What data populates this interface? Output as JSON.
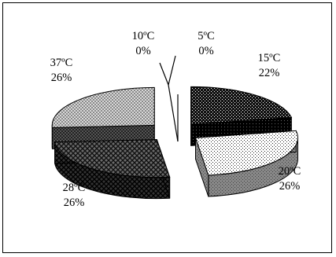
{
  "chart_data": {
    "type": "pie",
    "style": "3d-exploded",
    "title": "",
    "legend": "none",
    "slices": [
      {
        "category": "5ºC",
        "value": 0,
        "label": "0%",
        "pattern": "none",
        "color": "#ffffff"
      },
      {
        "category": "15ºC",
        "value": 22,
        "label": "22%",
        "pattern": "dense-dots",
        "color": "#1a1a1a"
      },
      {
        "category": "20ºC",
        "value": 26,
        "label": "26%",
        "pattern": "sparse-dots",
        "color": "#ffffff"
      },
      {
        "category": "28ºC",
        "value": 26,
        "label": "26%",
        "pattern": "crosshatch",
        "color": "#2e2e2e"
      },
      {
        "category": "37ºC",
        "value": 26,
        "label": "26%",
        "pattern": "light-check",
        "color": "#cccccc"
      },
      {
        "category": "10ºC",
        "value": 0,
        "label": "0%",
        "pattern": "none",
        "color": "#ffffff"
      }
    ]
  }
}
